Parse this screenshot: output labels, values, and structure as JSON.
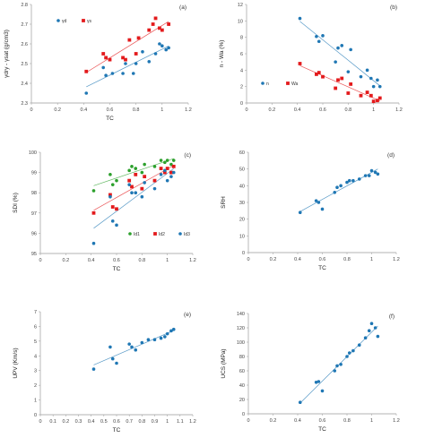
{
  "chart_data": [
    {
      "type": "scatter",
      "panel": "(a)",
      "xlabel": "TC",
      "ylabel": "γdry - γsat (g/cm3)",
      "xlim": [
        0,
        1.2
      ],
      "ylim": [
        2.3,
        2.8
      ],
      "xticks": [
        "0",
        "0.2",
        "0.4",
        "0.6",
        "0.8",
        "1",
        "1.2"
      ],
      "yticks": [
        "2.3",
        "2.4",
        "2.5",
        "2.6",
        "2.7",
        "2.8"
      ],
      "legend_position": "top-left",
      "series": [
        {
          "name": "γd",
          "color": "#1f77b4",
          "marker": "circle",
          "trendline": true,
          "points": [
            [
              0.42,
              2.35
            ],
            [
              0.55,
              2.48
            ],
            [
              0.57,
              2.44
            ],
            [
              0.62,
              2.45
            ],
            [
              0.7,
              2.45
            ],
            [
              0.72,
              2.5
            ],
            [
              0.78,
              2.45
            ],
            [
              0.8,
              2.5
            ],
            [
              0.85,
              2.56
            ],
            [
              0.9,
              2.51
            ],
            [
              0.95,
              2.55
            ],
            [
              0.98,
              2.6
            ],
            [
              1.0,
              2.59
            ],
            [
              1.03,
              2.57
            ],
            [
              1.05,
              2.58
            ]
          ]
        },
        {
          "name": "γs",
          "color": "#e31a1c",
          "marker": "square",
          "trendline": true,
          "points": [
            [
              0.42,
              2.46
            ],
            [
              0.55,
              2.55
            ],
            [
              0.57,
              2.53
            ],
            [
              0.6,
              2.52
            ],
            [
              0.7,
              2.53
            ],
            [
              0.72,
              2.52
            ],
            [
              0.75,
              2.62
            ],
            [
              0.8,
              2.55
            ],
            [
              0.82,
              2.63
            ],
            [
              0.9,
              2.67
            ],
            [
              0.93,
              2.7
            ],
            [
              0.95,
              2.73
            ],
            [
              0.98,
              2.68
            ],
            [
              1.0,
              2.67
            ],
            [
              1.05,
              2.7
            ]
          ]
        }
      ]
    },
    {
      "type": "scatter",
      "panel": "(b)",
      "xlabel": "",
      "ylabel": "n - Wa (%)",
      "xlim": [
        0,
        1.2
      ],
      "ylim": [
        0,
        12
      ],
      "xticks": [
        "0",
        "0.2",
        "0.4",
        "0.6",
        "0.8",
        "1",
        "1.2"
      ],
      "yticks": [
        "0",
        "2",
        "4",
        "6",
        "8",
        "10",
        "12"
      ],
      "legend_position": "bottom-left",
      "series": [
        {
          "name": "n",
          "color": "#1f77b4",
          "marker": "circle",
          "trendline": true,
          "points": [
            [
              0.42,
              10.3
            ],
            [
              0.55,
              8.1
            ],
            [
              0.57,
              7.5
            ],
            [
              0.6,
              8.2
            ],
            [
              0.7,
              5.0
            ],
            [
              0.72,
              6.7
            ],
            [
              0.75,
              7.0
            ],
            [
              0.8,
              3.8
            ],
            [
              0.82,
              6.5
            ],
            [
              0.9,
              3.2
            ],
            [
              0.95,
              4.0
            ],
            [
              0.98,
              3.0
            ],
            [
              1.0,
              2.0
            ],
            [
              1.03,
              2.8
            ],
            [
              1.05,
              2.0
            ]
          ]
        },
        {
          "name": "Wa",
          "color": "#e31a1c",
          "marker": "square",
          "trendline": true,
          "points": [
            [
              0.42,
              4.8
            ],
            [
              0.55,
              3.5
            ],
            [
              0.57,
              3.7
            ],
            [
              0.6,
              3.2
            ],
            [
              0.7,
              1.8
            ],
            [
              0.72,
              2.8
            ],
            [
              0.75,
              3.0
            ],
            [
              0.8,
              1.2
            ],
            [
              0.82,
              2.3
            ],
            [
              0.9,
              0.9
            ],
            [
              0.95,
              1.3
            ],
            [
              0.98,
              0.9
            ],
            [
              1.0,
              0.2
            ],
            [
              1.03,
              0.3
            ],
            [
              1.05,
              0.6
            ]
          ]
        }
      ]
    },
    {
      "type": "scatter",
      "panel": "(c)",
      "xlabel": "TC",
      "ylabel": "SDI (%)",
      "xlim": [
        0,
        1.2
      ],
      "ylim": [
        95,
        100
      ],
      "xticks": [
        "0",
        "0.2",
        "0.4",
        "0.6",
        "0.8",
        "1",
        "1.2"
      ],
      "yticks": [
        "95",
        "96",
        "97",
        "98",
        "99",
        "100"
      ],
      "legend_position": "bottom-right",
      "series": [
        {
          "name": "Id1",
          "color": "#2ca02c",
          "marker": "circle",
          "trendline": true,
          "points": [
            [
              0.42,
              98.1
            ],
            [
              0.55,
              98.9
            ],
            [
              0.57,
              98.4
            ],
            [
              0.6,
              98.6
            ],
            [
              0.7,
              99.1
            ],
            [
              0.72,
              99.3
            ],
            [
              0.75,
              99.2
            ],
            [
              0.8,
              99.0
            ],
            [
              0.82,
              99.4
            ],
            [
              0.9,
              99.3
            ],
            [
              0.95,
              99.6
            ],
            [
              0.98,
              99.5
            ],
            [
              1.0,
              99.6
            ],
            [
              1.03,
              99.4
            ],
            [
              1.05,
              99.6
            ]
          ]
        },
        {
          "name": "Id2",
          "color": "#e31a1c",
          "marker": "square",
          "trendline": true,
          "points": [
            [
              0.42,
              97.0
            ],
            [
              0.55,
              97.9
            ],
            [
              0.57,
              97.3
            ],
            [
              0.6,
              97.2
            ],
            [
              0.7,
              98.6
            ],
            [
              0.72,
              98.3
            ],
            [
              0.75,
              98.9
            ],
            [
              0.8,
              98.2
            ],
            [
              0.82,
              98.8
            ],
            [
              0.9,
              98.6
            ],
            [
              0.95,
              99.2
            ],
            [
              0.98,
              99.0
            ],
            [
              1.0,
              99.2
            ],
            [
              1.03,
              99.0
            ],
            [
              1.05,
              99.3
            ]
          ]
        },
        {
          "name": "Id3",
          "color": "#1f77b4",
          "marker": "circle",
          "trendline": true,
          "points": [
            [
              0.42,
              95.5
            ],
            [
              0.55,
              97.8
            ],
            [
              0.57,
              96.6
            ],
            [
              0.6,
              96.4
            ],
            [
              0.7,
              98.4
            ],
            [
              0.72,
              98.0
            ],
            [
              0.75,
              98.0
            ],
            [
              0.8,
              97.8
            ],
            [
              0.82,
              98.5
            ],
            [
              0.9,
              98.2
            ],
            [
              0.95,
              98.9
            ],
            [
              0.98,
              99.1
            ],
            [
              1.0,
              98.6
            ],
            [
              1.03,
              98.8
            ],
            [
              1.05,
              99.0
            ]
          ]
        }
      ]
    },
    {
      "type": "scatter",
      "panel": "(d)",
      "xlabel": "TC",
      "ylabel": "SRH",
      "xlim": [
        0,
        1.2
      ],
      "ylim": [
        0,
        60
      ],
      "xticks": [
        "0",
        "0.2",
        "0.4",
        "0.6",
        "0.8",
        "1",
        "1.2"
      ],
      "yticks": [
        "0",
        "10",
        "20",
        "30",
        "40",
        "50",
        "60"
      ],
      "series": [
        {
          "name": "",
          "color": "#1f77b4",
          "marker": "circle",
          "trendline": true,
          "points": [
            [
              0.42,
              24
            ],
            [
              0.55,
              31
            ],
            [
              0.57,
              30
            ],
            [
              0.6,
              26
            ],
            [
              0.7,
              36
            ],
            [
              0.72,
              39
            ],
            [
              0.75,
              40
            ],
            [
              0.8,
              42
            ],
            [
              0.82,
              43
            ],
            [
              0.85,
              43
            ],
            [
              0.9,
              44
            ],
            [
              0.95,
              46
            ],
            [
              0.98,
              46
            ],
            [
              1.0,
              49
            ],
            [
              1.03,
              48
            ],
            [
              1.05,
              47
            ]
          ]
        }
      ]
    },
    {
      "type": "scatter",
      "panel": "(e)",
      "xlabel": "TC",
      "ylabel": "UPV (Km/s)",
      "xlim": [
        0,
        1.2
      ],
      "ylim": [
        0,
        7
      ],
      "xticks": [
        "0",
        "0.1",
        "0.2",
        "0.3",
        "0.4",
        "0.5",
        "0.6",
        "0.7",
        "0.8",
        "0.9",
        "1",
        "1.1",
        "1.2"
      ],
      "yticks": [
        "0",
        "1",
        "2",
        "3",
        "4",
        "5",
        "6",
        "7"
      ],
      "series": [
        {
          "name": "",
          "color": "#1f77b4",
          "marker": "circle",
          "trendline": true,
          "points": [
            [
              0.42,
              3.1
            ],
            [
              0.55,
              4.6
            ],
            [
              0.57,
              3.8
            ],
            [
              0.6,
              3.5
            ],
            [
              0.7,
              4.8
            ],
            [
              0.72,
              4.6
            ],
            [
              0.75,
              4.4
            ],
            [
              0.8,
              4.9
            ],
            [
              0.85,
              5.1
            ],
            [
              0.9,
              5.1
            ],
            [
              0.95,
              5.2
            ],
            [
              0.98,
              5.3
            ],
            [
              1.0,
              5.5
            ],
            [
              1.03,
              5.7
            ],
            [
              1.05,
              5.8
            ]
          ]
        }
      ]
    },
    {
      "type": "scatter",
      "panel": "(f)",
      "xlabel": "TC",
      "ylabel": "UCS (MPa)",
      "xlim": [
        0,
        1.2
      ],
      "ylim": [
        0,
        140
      ],
      "xticks": [
        "0",
        "0.2",
        "0.4",
        "0.6",
        "0.8",
        "1",
        "1.2"
      ],
      "yticks": [
        "0",
        "20",
        "40",
        "60",
        "80",
        "100",
        "120",
        "140"
      ],
      "series": [
        {
          "name": "",
          "color": "#1f77b4",
          "marker": "circle",
          "trendline": true,
          "points": [
            [
              0.42,
              16
            ],
            [
              0.55,
              44
            ],
            [
              0.57,
              45
            ],
            [
              0.6,
              32
            ],
            [
              0.7,
              60
            ],
            [
              0.72,
              67
            ],
            [
              0.75,
              69
            ],
            [
              0.8,
              80
            ],
            [
              0.82,
              85
            ],
            [
              0.85,
              88
            ],
            [
              0.9,
              96
            ],
            [
              0.95,
              106
            ],
            [
              0.98,
              116
            ],
            [
              1.0,
              126
            ],
            [
              1.03,
              120
            ],
            [
              1.05,
              108
            ]
          ]
        }
      ]
    }
  ]
}
